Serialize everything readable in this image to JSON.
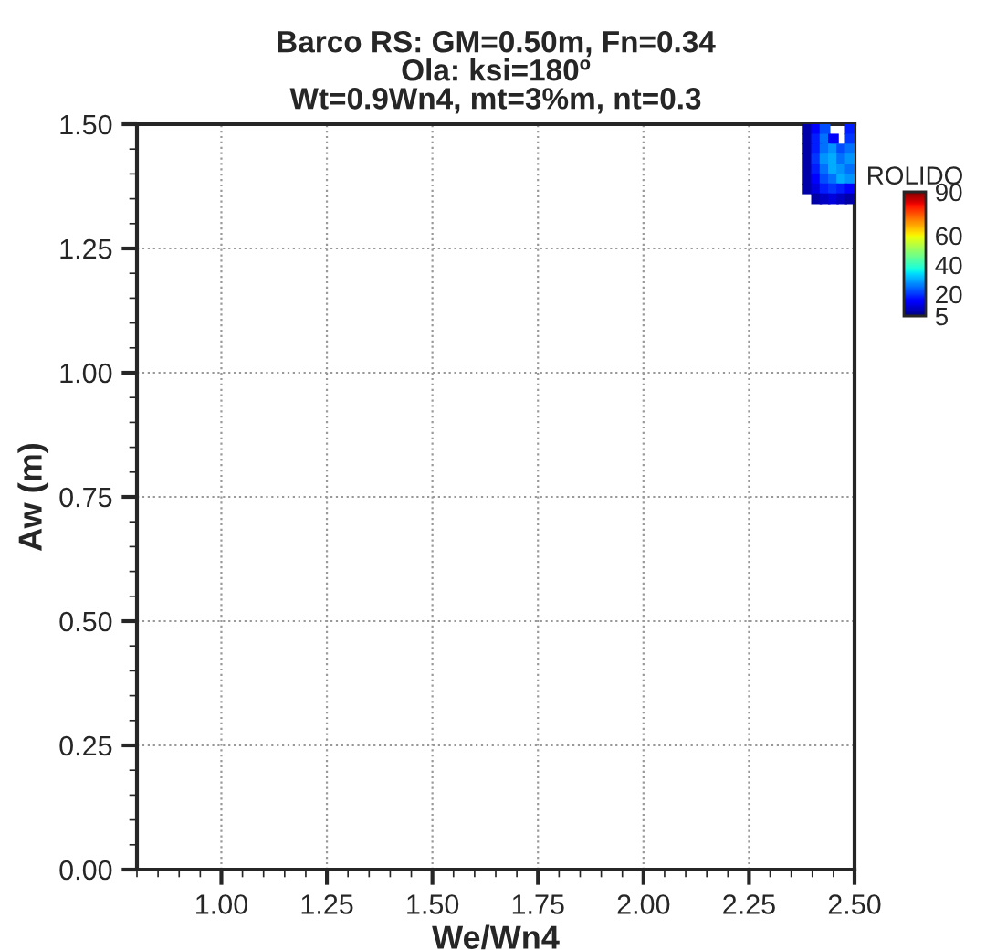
{
  "chart_data": {
    "type": "scatter",
    "title": "Barco RS: GM=0.50m, Fn=0.34\nOla: ksi=180º\nWt=0.9Wn4, mt=3%m, nt=0.3",
    "xlabel": "We/Wn4",
    "ylabel": "Aw (m)",
    "clabel": "ROLIDO",
    "xlim": [
      0.8,
      2.5
    ],
    "xticks": [
      {
        "value": 1.0,
        "label": "1.00"
      },
      {
        "value": 1.25,
        "label": "1.25"
      },
      {
        "value": 1.5,
        "label": "1.50"
      },
      {
        "value": 1.75,
        "label": "1.75"
      },
      {
        "value": 2.0,
        "label": "2.00"
      },
      {
        "value": 2.25,
        "label": "2.25"
      },
      {
        "value": 2.5,
        "label": "2.50"
      }
    ],
    "ylim": [
      0,
      1.5
    ],
    "yticks": [
      {
        "value": 0,
        "label": "0.00"
      },
      {
        "value": 0.25,
        "label": "0.25"
      },
      {
        "value": 0.5,
        "label": "0.50"
      },
      {
        "value": 0.75,
        "label": "0.75"
      },
      {
        "value": 1.0,
        "label": "1.00"
      },
      {
        "value": 1.25,
        "label": "1.25"
      },
      {
        "value": 1.5,
        "label": "1.50"
      }
    ],
    "clim": [
      5,
      90
    ],
    "cticks": [
      5,
      20,
      40,
      60,
      90
    ],
    "grid": true,
    "marker": "square",
    "legend": false,
    "x": [
      2.39,
      2.41,
      2.43,
      2.49,
      2.39,
      2.41,
      2.43,
      2.45,
      2.49,
      2.39,
      2.41,
      2.43,
      2.45,
      2.47,
      2.49,
      2.39,
      2.41,
      2.43,
      2.45,
      2.47,
      2.49,
      2.39,
      2.41,
      2.43,
      2.45,
      2.47,
      2.49,
      2.39,
      2.41,
      2.43,
      2.45,
      2.47,
      2.49,
      2.39,
      2.41,
      2.43,
      2.45,
      2.47,
      2.49,
      2.41,
      2.43,
      2.45,
      2.47,
      2.49
    ],
    "values": [
      1.49,
      1.49,
      1.49,
      1.49,
      1.47,
      1.47,
      1.47,
      1.47,
      1.47,
      1.45,
      1.45,
      1.45,
      1.45,
      1.45,
      1.45,
      1.43,
      1.43,
      1.43,
      1.43,
      1.43,
      1.43,
      1.41,
      1.41,
      1.41,
      1.41,
      1.41,
      1.41,
      1.39,
      1.39,
      1.39,
      1.39,
      1.39,
      1.39,
      1.37,
      1.37,
      1.37,
      1.37,
      1.37,
      1.37,
      1.35,
      1.35,
      1.35,
      1.35,
      1.35
    ],
    "cvalues": [
      8,
      15,
      22,
      18,
      8,
      18,
      25,
      15,
      20,
      8,
      18,
      25,
      28,
      22,
      25,
      8,
      20,
      28,
      30,
      25,
      28,
      8,
      18,
      25,
      30,
      28,
      25,
      8,
      15,
      22,
      25,
      30,
      28,
      8,
      12,
      18,
      20,
      18,
      15,
      8,
      10,
      12,
      10,
      8
    ]
  }
}
